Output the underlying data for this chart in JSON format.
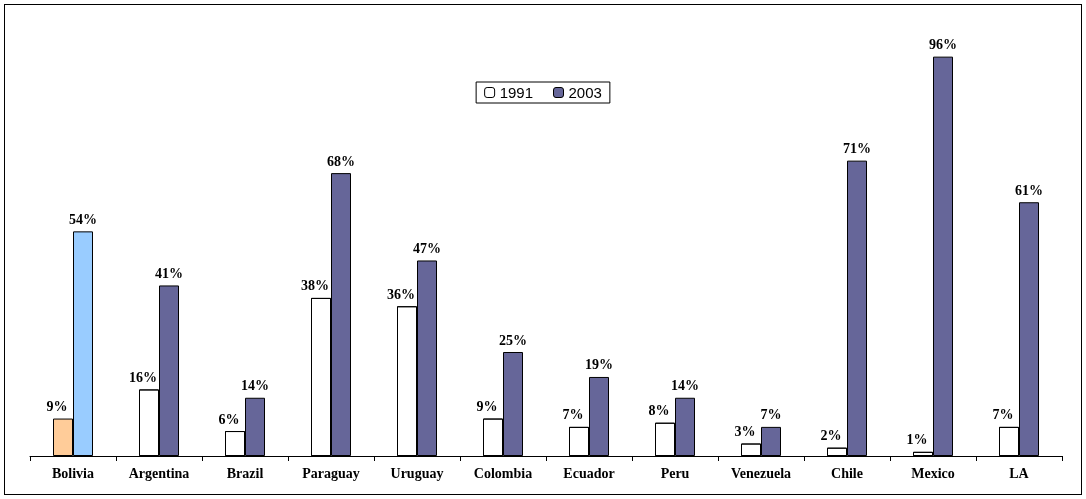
{
  "chart_data": {
    "type": "bar",
    "categories": [
      "Bolivia",
      "Argentina",
      "Brazil",
      "Paraguay",
      "Uruguay",
      "Colombia",
      "Ecuador",
      "Peru",
      "Venezuela",
      "Chile",
      "Mexico",
      "LA"
    ],
    "series": [
      {
        "name": "1991",
        "color": "#ffffff",
        "colors": [
          "#ffcc99",
          "#ffffff",
          "#ffffff",
          "#ffffff",
          "#ffffff",
          "#ffffff",
          "#ffffff",
          "#ffffff",
          "#ffffff",
          "#ffffff",
          "#ffffff",
          "#ffffff"
        ],
        "values": [
          9,
          16,
          6,
          38,
          36,
          9,
          7,
          8,
          3,
          2,
          1,
          7
        ],
        "value_labels": [
          "9%",
          "16%",
          "6%",
          "38%",
          "36%",
          "9%",
          "7%",
          "8%",
          "3%",
          "2%",
          "1%",
          "7%"
        ]
      },
      {
        "name": "2003",
        "color": "#666699",
        "colors": [
          "#99ccff",
          "#666699",
          "#666699",
          "#666699",
          "#666699",
          "#666699",
          "#666699",
          "#666699",
          "#666699",
          "#666699",
          "#666699",
          "#666699"
        ],
        "values": [
          54,
          41,
          14,
          68,
          47,
          25,
          19,
          14,
          7,
          71,
          96,
          61
        ],
        "value_labels": [
          "54%",
          "41%",
          "14%",
          "68%",
          "47%",
          "25%",
          "19%",
          "14%",
          "7%",
          "71%",
          "96%",
          "61%"
        ]
      }
    ],
    "legend": "top",
    "grid": false
  }
}
